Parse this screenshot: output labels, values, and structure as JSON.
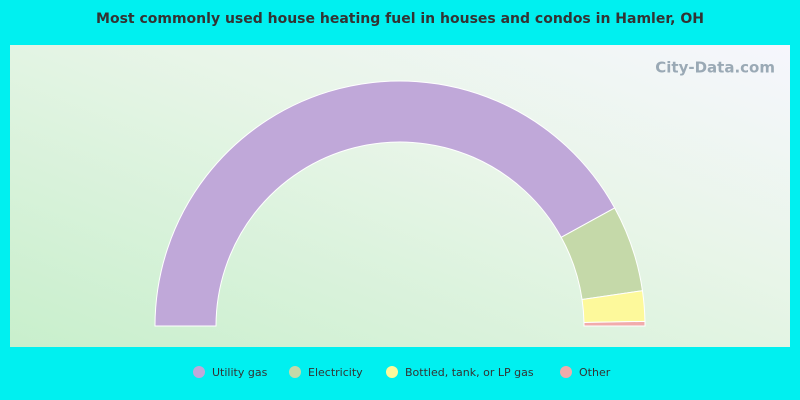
{
  "chart_data": {
    "type": "pie",
    "title": "Most commonly used house heating fuel in houses and condos in Hamler, OH",
    "watermark": "City-Data.com",
    "series": [
      {
        "name": "Utility gas",
        "color": "#c0a8d9",
        "values": [
          84
        ]
      },
      {
        "name": "Electricity",
        "color": "#c5d9a9",
        "values": [
          11.4
        ]
      },
      {
        "name": "Bottled, tank, or LP gas",
        "color": "#fdf99b",
        "values": [
          4
        ]
      },
      {
        "name": "Other",
        "color": "#f1abab",
        "values": [
          0.6
        ]
      }
    ]
  }
}
